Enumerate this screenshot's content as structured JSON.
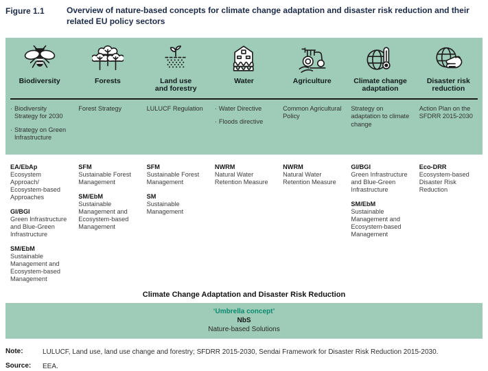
{
  "colors": {
    "band_green": "#9fccb9",
    "accent_teal": "#0b8a6e",
    "title_navy": "#1c2b4a"
  },
  "figure": {
    "label": "Figure 1.1",
    "title": "Overview of nature-based concepts for climate change adaptation and disaster risk reduction and their related EU policy sectors"
  },
  "columns": [
    {
      "id": "biodiversity",
      "header": "Biodiversity",
      "icon": "bee-icon",
      "policies_bulleted": true,
      "policies": [
        "Biodiversity Strategy for 2030",
        "Strategy on Green Infrastructure"
      ],
      "concepts": [
        {
          "abbr": "EA/EbAp",
          "desc": "Ecosystem Approach/ Ecosystem-based Approaches"
        },
        {
          "abbr": "GI/BGI",
          "desc": "Green Infrastructure and Blue-Green Infrastructure"
        },
        {
          "abbr": "SM/EbM",
          "desc": "Sustainable Management and Ecosystem-based Management"
        }
      ]
    },
    {
      "id": "forests",
      "header": "Forests",
      "icon": "trees-icon",
      "policies_bulleted": false,
      "policies": [
        "Forest Strategy"
      ],
      "concepts": [
        {
          "abbr": "SFM",
          "desc": "Sustainable Forest Management"
        },
        {
          "abbr": "SM/EbM",
          "desc": "Sustainable Management and Ecosystem-based Management"
        }
      ]
    },
    {
      "id": "land-use-forestry",
      "header": "Land use\nand forestry",
      "icon": "soil-sprout-icon",
      "policies_bulleted": false,
      "policies": [
        "LULUCF Regulation"
      ],
      "concepts": [
        {
          "abbr": "SFM",
          "desc": "Sustainable Forest Management"
        },
        {
          "abbr": "SM",
          "desc": "Sustainable Management"
        }
      ]
    },
    {
      "id": "water",
      "header": "Water",
      "icon": "house-flood-icon",
      "policies_bulleted": true,
      "policies": [
        "Water Directive",
        "Floods directive"
      ],
      "concepts": [
        {
          "abbr": "NWRM",
          "desc": "Natural Water Retention Measure"
        }
      ]
    },
    {
      "id": "agriculture",
      "header": "Agriculture",
      "icon": "tractor-icon",
      "policies_bulleted": false,
      "policies": [
        "Common Agricultural Policy"
      ],
      "concepts": [
        {
          "abbr": "NWRM",
          "desc": "Natural Water Retention Measure"
        }
      ]
    },
    {
      "id": "climate-change-adaptation",
      "header": "Climate change\nadaptation",
      "icon": "globe-thermometer-icon",
      "policies_bulleted": false,
      "policies": [
        "Strategy on adaptation to climate change"
      ],
      "concepts": [
        {
          "abbr": "GI/BGI",
          "desc": "Green Infrastructure and Blue-Green Infrastructure"
        },
        {
          "abbr": "SM/EbM",
          "desc": "Sustainable Management and Ecosystem-based Management"
        }
      ]
    },
    {
      "id": "disaster-risk-reduction",
      "header": "Disaster risk\nreduction",
      "icon": "globe-hand-icon",
      "policies_bulleted": false,
      "policies": [
        "Action Plan on the SFDRR 2015-2030"
      ],
      "concepts": [
        {
          "abbr": "Eco-DRR",
          "desc": "Ecosystem-based Disaster Risk Reduction"
        }
      ]
    }
  ],
  "cca_heading": "Climate Change Adaptation and Disaster Risk Reduction",
  "umbrella": {
    "line1": "‘Umbrella concept’",
    "line2": "NbS",
    "line3": "Nature-based Solutions"
  },
  "note": {
    "label": "Note:",
    "text": "LULUCF, Land use, land use change and forestry; SFDRR 2015-2030, Sendai Framework for Disaster Risk Reduction 2015-2030."
  },
  "source": {
    "label": "Source:",
    "text": "EEA."
  }
}
